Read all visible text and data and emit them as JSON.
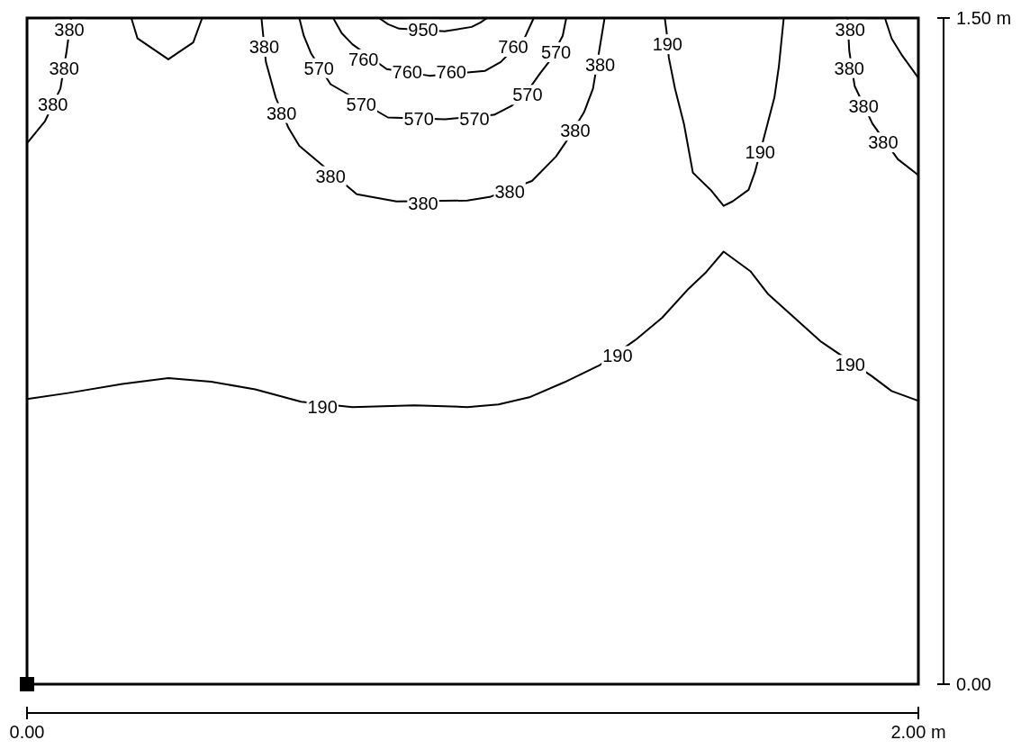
{
  "chart_data": {
    "type": "line",
    "xlim": [
      0,
      2
    ],
    "ylim": [
      0,
      1.5
    ],
    "xticks": [
      {
        "value": 0,
        "label": "0.00"
      },
      {
        "value": 2,
        "label": "2.00 m"
      }
    ],
    "yticks": [
      {
        "value": 0,
        "label": "0.00"
      },
      {
        "value": 1.5,
        "label": "1.50 m"
      }
    ],
    "marker": "none",
    "line_style": "solid",
    "series": [
      {
        "color": "#000000",
        "x": [
          0,
          0.095,
          0.214,
          0.317,
          0.413,
          0.512,
          0.615,
          0.73,
          0.869,
          0.988,
          1.058,
          1.127,
          1.206,
          1.286,
          1.365,
          1.425,
          1.484,
          1.524,
          1.563,
          1.623,
          1.663,
          1.722,
          1.782,
          1.895,
          1.94,
          2.0
        ],
        "values": [
          0.642,
          0.656,
          0.676,
          0.689,
          0.681,
          0.664,
          0.636,
          0.624,
          0.628,
          0.624,
          0.63,
          0.646,
          0.68,
          0.719,
          0.775,
          0.825,
          0.89,
          0.928,
          0.974,
          0.93,
          0.878,
          0.825,
          0.771,
          0.694,
          0.66,
          0.638
        ]
      },
      {
        "color": "#000000",
        "x": [
          1.431,
          1.435,
          1.44,
          1.454,
          1.474,
          1.494,
          1.504,
          1.534,
          1.563,
          1.583,
          1.619,
          1.633,
          1.677,
          1.687,
          1.698
        ],
        "values": [
          1.5,
          1.47,
          1.411,
          1.341,
          1.262,
          1.152,
          1.142,
          1.113,
          1.077,
          1.087,
          1.113,
          1.152,
          1.321,
          1.391,
          1.5
        ]
      },
      {
        "color": "#000000",
        "x": [
          0,
          0.04,
          0.075,
          0.089,
          0.099
        ],
        "values": [
          1.218,
          1.267,
          1.341,
          1.426,
          1.5
        ]
      },
      {
        "color": "#000000",
        "x": [
          0.234,
          0.248,
          0.317,
          0.373,
          0.393
        ],
        "values": [
          1.5,
          1.454,
          1.407,
          1.445,
          1.5
        ]
      },
      {
        "color": "#000000",
        "x": [
          0.526,
          0.536,
          0.558,
          0.587,
          0.611,
          0.74,
          0.829,
          0.988,
          1.038,
          1.133,
          1.187,
          1.21,
          1.25,
          1.27,
          1.296
        ],
        "values": [
          1.5,
          1.401,
          1.321,
          1.252,
          1.212,
          1.103,
          1.087,
          1.089,
          1.097,
          1.133,
          1.188,
          1.222,
          1.288,
          1.341,
          1.5
        ]
      },
      {
        "color": "#000000",
        "x": [
          0.611,
          0.621,
          0.637,
          0.681,
          0.81,
          0.938,
          1.048,
          1.087,
          1.117,
          1.151,
          1.171,
          1.202,
          1.21
        ],
        "values": [
          1.5,
          1.46,
          1.421,
          1.351,
          1.276,
          1.272,
          1.282,
          1.302,
          1.327,
          1.375,
          1.401,
          1.46,
          1.5
        ]
      },
      {
        "color": "#000000",
        "x": [
          0.687,
          0.706,
          0.73,
          0.807,
          0.903,
          1.028,
          1.063,
          1.117,
          1.137
        ],
        "values": [
          1.5,
          1.466,
          1.441,
          1.385,
          1.37,
          1.381,
          1.401,
          1.456,
          1.5
        ]
      },
      {
        "color": "#000000",
        "x": [
          0.79,
          0.81,
          0.835,
          0.937,
          0.998,
          1.018,
          1.032
        ],
        "values": [
          1.5,
          1.486,
          1.476,
          1.47,
          1.48,
          1.49,
          1.5
        ]
      },
      {
        "color": "#000000",
        "x": [
          1.841,
          1.845,
          1.857,
          1.897,
          1.954,
          2.0
        ],
        "values": [
          1.5,
          1.426,
          1.347,
          1.262,
          1.182,
          1.146
        ]
      },
      {
        "color": "#000000",
        "x": [
          1.925,
          1.94,
          1.964,
          2.0
        ],
        "values": [
          1.5,
          1.454,
          1.415,
          1.365
        ]
      }
    ],
    "annotations": [
      {
        "text": "380",
        "x": 0.095,
        "y": 1.474
      },
      {
        "text": "380",
        "x": 0.083,
        "y": 1.387
      },
      {
        "text": "380",
        "x": 0.058,
        "y": 1.305
      },
      {
        "text": "380",
        "x": 0.532,
        "y": 1.435
      },
      {
        "text": "380",
        "x": 0.571,
        "y": 1.286
      },
      {
        "text": "380",
        "x": 0.681,
        "y": 1.144
      },
      {
        "text": "380",
        "x": 0.889,
        "y": 1.083
      },
      {
        "text": "380",
        "x": 1.083,
        "y": 1.109
      },
      {
        "text": "380",
        "x": 1.23,
        "y": 1.246
      },
      {
        "text": "380",
        "x": 1.286,
        "y": 1.395
      },
      {
        "text": "570",
        "x": 0.655,
        "y": 1.387
      },
      {
        "text": "570",
        "x": 0.75,
        "y": 1.306
      },
      {
        "text": "570",
        "x": 0.879,
        "y": 1.272
      },
      {
        "text": "570",
        "x": 1.004,
        "y": 1.272
      },
      {
        "text": "570",
        "x": 1.123,
        "y": 1.327
      },
      {
        "text": "570",
        "x": 1.187,
        "y": 1.423
      },
      {
        "text": "760",
        "x": 0.755,
        "y": 1.407
      },
      {
        "text": "760",
        "x": 0.853,
        "y": 1.379
      },
      {
        "text": "760",
        "x": 0.952,
        "y": 1.379
      },
      {
        "text": "760",
        "x": 1.091,
        "y": 1.435
      },
      {
        "text": "950",
        "x": 0.889,
        "y": 1.474
      },
      {
        "text": "190",
        "x": 1.437,
        "y": 1.441
      },
      {
        "text": "190",
        "x": 1.645,
        "y": 1.198
      },
      {
        "text": "380",
        "x": 1.847,
        "y": 1.474
      },
      {
        "text": "380",
        "x": 1.845,
        "y": 1.387
      },
      {
        "text": "380",
        "x": 1.877,
        "y": 1.301
      },
      {
        "text": "380",
        "x": 1.921,
        "y": 1.22
      },
      {
        "text": "190",
        "x": 0.663,
        "y": 0.624
      },
      {
        "text": "190",
        "x": 1.325,
        "y": 0.739
      },
      {
        "text": "190",
        "x": 1.847,
        "y": 0.719
      }
    ]
  }
}
